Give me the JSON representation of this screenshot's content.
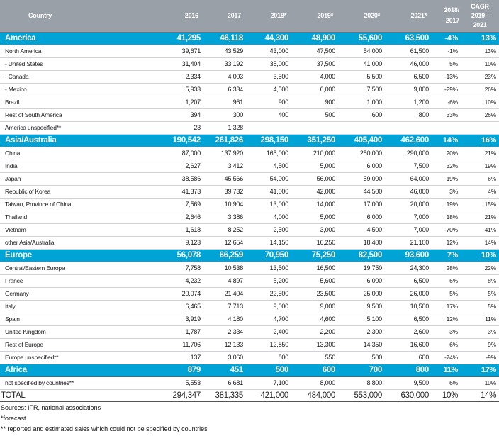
{
  "header": {
    "country": "Country",
    "y2016": "2016",
    "y2017": "2017",
    "y2018": "2018*",
    "y2019": "2019*",
    "y2020": "2020*",
    "y2021": "2021*",
    "change_line1": "2018/",
    "change_line2": "2017",
    "cagr_line1": "CAGR",
    "cagr_line2": "2019 -",
    "cagr_line3": "2021"
  },
  "rows": [
    {
      "type": "region",
      "name": "America",
      "v2016": "41,295",
      "v2017": "46,118",
      "v2018": "44,300",
      "v2019": "48,900",
      "v2020": "55,600",
      "v2021": "63,500",
      "chg": "-4%",
      "cagr": "13%"
    },
    {
      "type": "data",
      "name": "North America",
      "v2016": "39,671",
      "v2017": "43,529",
      "v2018": "43,000",
      "v2019": "47,500",
      "v2020": "54,000",
      "v2021": "61,500",
      "chg": "-1%",
      "cagr": "13%"
    },
    {
      "type": "data",
      "name": "- United States",
      "v2016": "31,404",
      "v2017": "33,192",
      "v2018": "35,000",
      "v2019": "37,500",
      "v2020": "41,000",
      "v2021": "46,000",
      "chg": "5%",
      "cagr": "10%"
    },
    {
      "type": "data",
      "name": "- Canada",
      "v2016": "2,334",
      "v2017": "4,003",
      "v2018": "3,500",
      "v2019": "4,000",
      "v2020": "5,500",
      "v2021": "6,500",
      "chg": "-13%",
      "cagr": "23%"
    },
    {
      "type": "data",
      "name": "- Mexico",
      "v2016": "5,933",
      "v2017": "6,334",
      "v2018": "4,500",
      "v2019": "6,000",
      "v2020": "7,500",
      "v2021": "9,000",
      "chg": "-29%",
      "cagr": "26%"
    },
    {
      "type": "data",
      "name": "Brazil",
      "v2016": "1,207",
      "v2017": "961",
      "v2018": "900",
      "v2019": "900",
      "v2020": "1,000",
      "v2021": "1,200",
      "chg": "-6%",
      "cagr": "10%"
    },
    {
      "type": "data",
      "name": "Rest of South America",
      "v2016": "394",
      "v2017": "300",
      "v2018": "400",
      "v2019": "500",
      "v2020": "600",
      "v2021": "800",
      "chg": "33%",
      "cagr": "26%"
    },
    {
      "type": "data",
      "name": "America unspecified**",
      "v2016": "23",
      "v2017": "1,328",
      "v2018": "",
      "v2019": "",
      "v2020": "",
      "v2021": "",
      "chg": "",
      "cagr": ""
    },
    {
      "type": "region",
      "name": "Asia/Australia",
      "v2016": "190,542",
      "v2017": "261,826",
      "v2018": "298,150",
      "v2019": "351,250",
      "v2020": "405,400",
      "v2021": "462,600",
      "chg": "14%",
      "cagr": "16%"
    },
    {
      "type": "data",
      "name": "China",
      "v2016": "87,000",
      "v2017": "137,920",
      "v2018": "165,000",
      "v2019": "210,000",
      "v2020": "250,000",
      "v2021": "290,000",
      "chg": "20%",
      "cagr": "21%"
    },
    {
      "type": "data",
      "name": "India",
      "v2016": "2,627",
      "v2017": "3,412",
      "v2018": "4,500",
      "v2019": "5,000",
      "v2020": "6,000",
      "v2021": "7,500",
      "chg": "32%",
      "cagr": "19%"
    },
    {
      "type": "data",
      "name": "Japan",
      "v2016": "38,586",
      "v2017": "45,566",
      "v2018": "54,000",
      "v2019": "56,000",
      "v2020": "59,000",
      "v2021": "64,000",
      "chg": "19%",
      "cagr": "6%"
    },
    {
      "type": "data",
      "name": "Republic of Korea",
      "v2016": "41,373",
      "v2017": "39,732",
      "v2018": "41,000",
      "v2019": "42,000",
      "v2020": "44,500",
      "v2021": "46,000",
      "chg": "3%",
      "cagr": "4%"
    },
    {
      "type": "data",
      "name": "Taiwan, Province of China",
      "v2016": "7,569",
      "v2017": "10,904",
      "v2018": "13,000",
      "v2019": "14,000",
      "v2020": "17,000",
      "v2021": "20,000",
      "chg": "19%",
      "cagr": "15%"
    },
    {
      "type": "data",
      "name": "Thailand",
      "v2016": "2,646",
      "v2017": "3,386",
      "v2018": "4,000",
      "v2019": "5,000",
      "v2020": "6,000",
      "v2021": "7,000",
      "chg": "18%",
      "cagr": "21%"
    },
    {
      "type": "data",
      "name": "Vietnam",
      "v2016": "1,618",
      "v2017": "8,252",
      "v2018": "2,500",
      "v2019": "3,000",
      "v2020": "4,500",
      "v2021": "7,000",
      "chg": "-70%",
      "cagr": "41%"
    },
    {
      "type": "data",
      "name": "other Asia/Australia",
      "v2016": "9,123",
      "v2017": "12,654",
      "v2018": "14,150",
      "v2019": "16,250",
      "v2020": "18,400",
      "v2021": "21,100",
      "chg": "12%",
      "cagr": "14%"
    },
    {
      "type": "region",
      "name": "Europe",
      "v2016": "56,078",
      "v2017": "66,259",
      "v2018": "70,950",
      "v2019": "75,250",
      "v2020": "82,500",
      "v2021": "93,600",
      "chg": "7%",
      "cagr": "10%"
    },
    {
      "type": "data",
      "name": "Central/Eastern Europe",
      "v2016": "7,758",
      "v2017": "10,538",
      "v2018": "13,500",
      "v2019": "16,500",
      "v2020": "19,750",
      "v2021": "24,300",
      "chg": "28%",
      "cagr": "22%"
    },
    {
      "type": "data",
      "name": "France",
      "v2016": "4,232",
      "v2017": "4,897",
      "v2018": "5,200",
      "v2019": "5,600",
      "v2020": "6,000",
      "v2021": "6,500",
      "chg": "6%",
      "cagr": "8%"
    },
    {
      "type": "data",
      "name": "Germany",
      "v2016": "20,074",
      "v2017": "21,404",
      "v2018": "22,500",
      "v2019": "23,500",
      "v2020": "25,000",
      "v2021": "26,000",
      "chg": "5%",
      "cagr": "5%"
    },
    {
      "type": "data",
      "name": "Italy",
      "v2016": "6,465",
      "v2017": "7,713",
      "v2018": "9,000",
      "v2019": "9,000",
      "v2020": "9,500",
      "v2021": "10,500",
      "chg": "17%",
      "cagr": "5%"
    },
    {
      "type": "data",
      "name": "Spain",
      "v2016": "3,919",
      "v2017": "4,180",
      "v2018": "4,700",
      "v2019": "4,600",
      "v2020": "5,100",
      "v2021": "6,500",
      "chg": "12%",
      "cagr": "11%"
    },
    {
      "type": "data",
      "name": "United Kingdom",
      "v2016": "1,787",
      "v2017": "2,334",
      "v2018": "2,400",
      "v2019": "2,200",
      "v2020": "2,300",
      "v2021": "2,600",
      "chg": "3%",
      "cagr": "3%"
    },
    {
      "type": "data",
      "name": "Rest of Europe",
      "v2016": "11,706",
      "v2017": "12,133",
      "v2018": "12,850",
      "v2019": "13,300",
      "v2020": "14,350",
      "v2021": "16,600",
      "chg": "6%",
      "cagr": "9%"
    },
    {
      "type": "data",
      "name": "Europe unspecified**",
      "v2016": "137",
      "v2017": "3,060",
      "v2018": "800",
      "v2019": "550",
      "v2020": "500",
      "v2021": "600",
      "chg": "-74%",
      "cagr": "-9%"
    },
    {
      "type": "region",
      "name": "Africa",
      "v2016": "879",
      "v2017": "451",
      "v2018": "500",
      "v2019": "600",
      "v2020": "700",
      "v2021": "800",
      "chg": "11%",
      "cagr": "17%"
    },
    {
      "type": "data",
      "name": "not specified by countries**",
      "v2016": "5,553",
      "v2017": "6,681",
      "v2018": "7,100",
      "v2019": "8,000",
      "v2020": "8,800",
      "v2021": "9,500",
      "chg": "6%",
      "cagr": "10%"
    },
    {
      "type": "total",
      "name": "TOTAL",
      "v2016": "294,347",
      "v2017": "381,335",
      "v2018": "421,000",
      "v2019": "484,000",
      "v2020": "553,000",
      "v2021": "630,000",
      "chg": "10%",
      "cagr": "14%"
    }
  ],
  "footnotes": {
    "sources": "Sources: IFR, national associations",
    "forecast": "*forecast",
    "unspecified": "** reported and estimated sales which could not be specified by countries"
  }
}
